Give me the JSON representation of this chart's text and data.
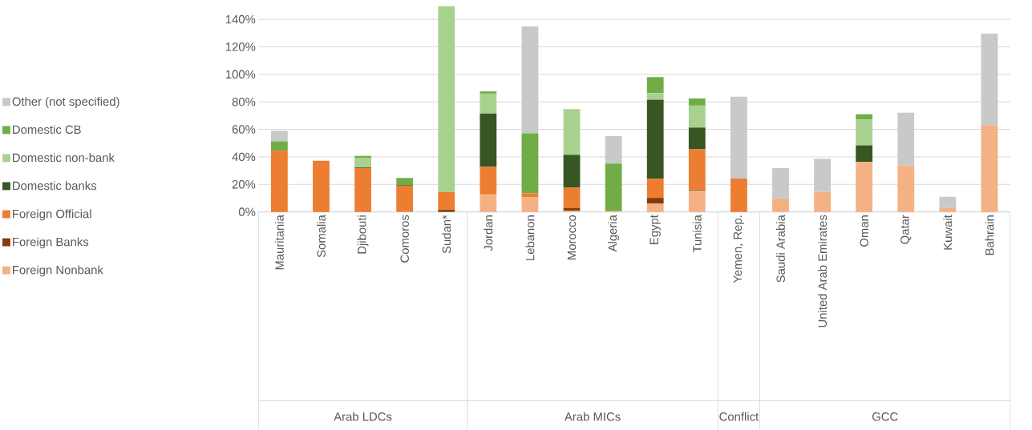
{
  "chart_data": {
    "type": "bar",
    "stacked": true,
    "categories": [
      "Mauritania",
      "Somalia",
      "Djibouti",
      "Comoros",
      "Sudan*",
      "Jordan",
      "Lebanon",
      "Morocco",
      "Algeria",
      "Egypt",
      "Tunisia",
      "Yemen, Rep.",
      "Saudi Arabia",
      "United Arab Emirates",
      "Oman",
      "Qatar",
      "Kuwait",
      "Bahrain"
    ],
    "series": [
      {
        "name": "Foreign Nonbank",
        "color": "#f4b183",
        "values": [
          null,
          null,
          null,
          null,
          null,
          12.7,
          10.8,
          0.8,
          0.5,
          6.0,
          15.6,
          null,
          9.8,
          14.7,
          36.3,
          33.8,
          3.1,
          63.1
        ]
      },
      {
        "name": "Foreign Banks",
        "color": "#843c0c",
        "values": [
          null,
          null,
          null,
          null,
          1.5,
          null,
          null,
          2.1,
          null,
          4.2,
          0.6,
          null,
          null,
          null,
          null,
          null,
          null,
          null
        ]
      },
      {
        "name": "Foreign Official",
        "color": "#ed7d31",
        "values": [
          44.4,
          37.2,
          31.8,
          19.1,
          13.0,
          20.1,
          2.7,
          14.8,
          null,
          13.9,
          29.3,
          24.3,
          null,
          null,
          null,
          null,
          null,
          null
        ]
      },
      {
        "name": "Domestic banks",
        "color": "#375623",
        "values": [
          null,
          null,
          0.5,
          0.5,
          null,
          38.8,
          null,
          23.8,
          null,
          57.5,
          15.8,
          null,
          null,
          null,
          12.1,
          null,
          null,
          null
        ]
      },
      {
        "name": "Domestic non-bank",
        "color": "#a9d18e",
        "values": [
          null,
          null,
          7.0,
          null,
          135,
          14.4,
          null,
          33.3,
          null,
          4.8,
          16.0,
          null,
          null,
          null,
          18.7,
          null,
          null,
          null
        ]
      },
      {
        "name": "Domestic CB",
        "color": "#70ad47",
        "values": [
          6.9,
          null,
          1.4,
          5.1,
          null,
          1.6,
          43.6,
          null,
          34.6,
          11.6,
          5.2,
          null,
          null,
          null,
          3.9,
          null,
          null,
          null
        ]
      },
      {
        "name": "Other (not specified)",
        "color": "#c9c9c9",
        "values": [
          7.7,
          null,
          null,
          null,
          null,
          null,
          77.7,
          null,
          20.1,
          null,
          null,
          59.4,
          22.0,
          23.9,
          null,
          38.3,
          7.9,
          66.5
        ]
      }
    ],
    "ylim": [
      0,
      150
    ],
    "yticks": [
      {
        "value": 0,
        "label": "0%"
      },
      {
        "value": 20,
        "label": "20%"
      },
      {
        "value": 40,
        "label": "40%"
      },
      {
        "value": 60,
        "label": "60%"
      },
      {
        "value": 80,
        "label": "80%"
      },
      {
        "value": 100,
        "label": "100%"
      },
      {
        "value": 120,
        "label": "120%"
      },
      {
        "value": 140,
        "label": "140%"
      }
    ],
    "grid": "y",
    "legend": "left",
    "annotations": [
      "Arab LDCs",
      "Arab MICs",
      "Conflict",
      "GCC"
    ]
  }
}
